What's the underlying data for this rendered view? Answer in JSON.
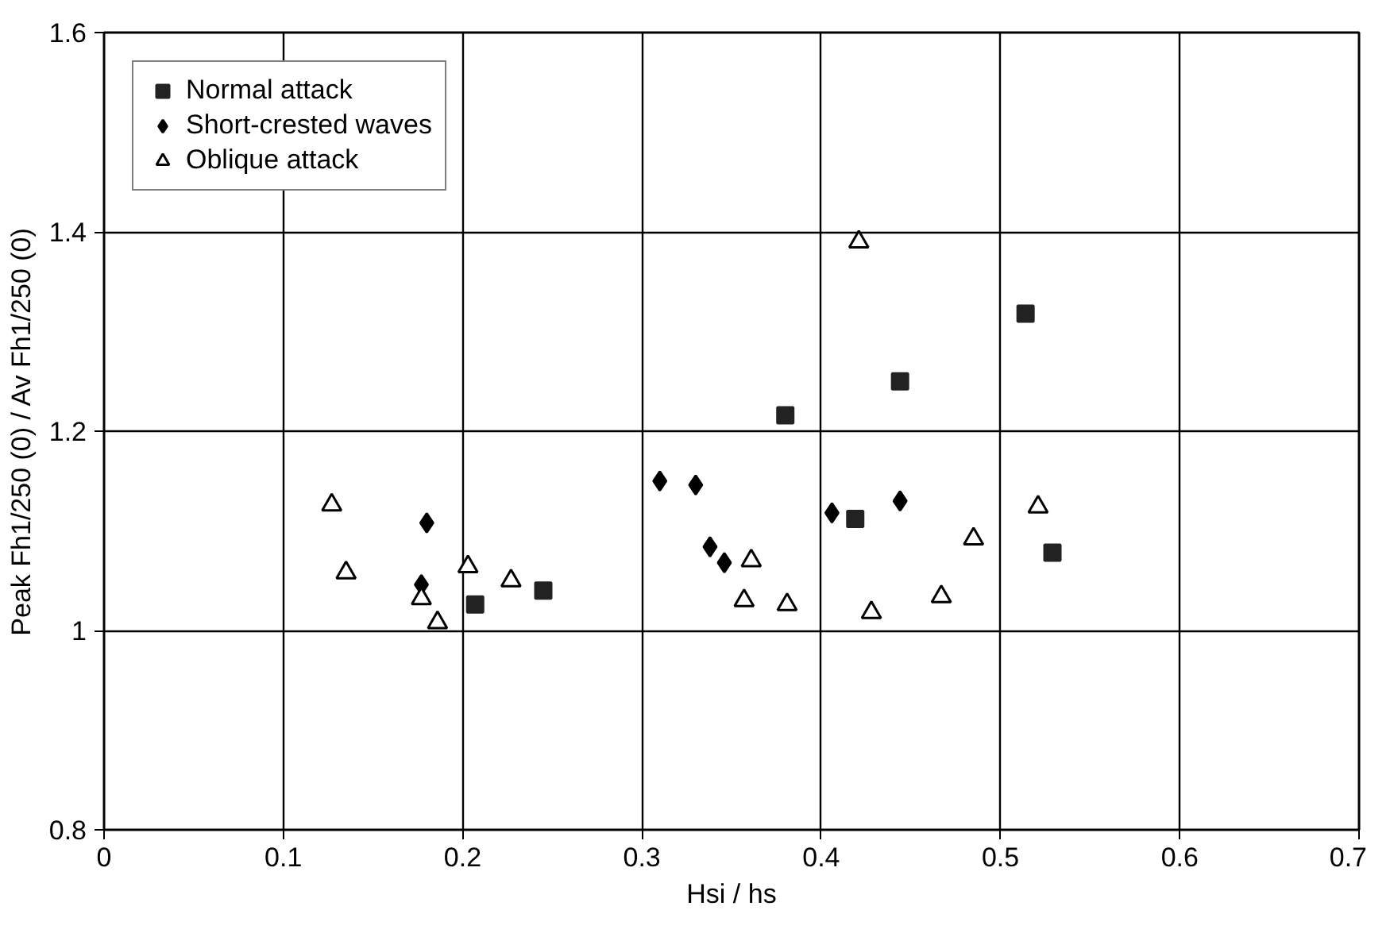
{
  "chart_data": {
    "type": "scatter",
    "xlabel": "Hsi / hs",
    "ylabel": "Peak Fh1/250 (0) / Av Fh1/250 (0)",
    "xlim": [
      0,
      0.7
    ],
    "xticks": [
      0,
      0.1,
      0.2,
      0.3,
      0.4,
      0.5,
      0.6,
      0.7
    ],
    "ylim": [
      0.8,
      1.6
    ],
    "yticks": [
      0.8,
      1,
      1.2,
      1.4,
      1.6
    ],
    "grid": true,
    "legend": "top left",
    "series": [
      {
        "name": "Normal attack",
        "color": "#222222",
        "marker": "square",
        "x": [
          0.207,
          0.245,
          0.38,
          0.444,
          0.514,
          0.419,
          0.529
        ],
        "values": [
          1.026,
          1.04,
          1.216,
          1.25,
          1.318,
          1.112,
          1.078
        ]
      },
      {
        "name": "Short-crested waves",
        "color": "#000000",
        "marker": "diamond",
        "x": [
          0.18,
          0.177,
          0.31,
          0.33,
          0.338,
          0.346,
          0.406,
          0.444
        ],
        "values": [
          1.108,
          1.046,
          1.15,
          1.146,
          1.084,
          1.068,
          1.118,
          1.13
        ]
      },
      {
        "name": "Oblique attack",
        "color": "#000000",
        "marker": "triangle",
        "x": [
          0.127,
          0.135,
          0.177,
          0.186,
          0.203,
          0.227,
          0.421,
          0.361,
          0.357,
          0.381,
          0.428,
          0.467,
          0.485,
          0.521
        ],
        "values": [
          1.126,
          1.058,
          1.032,
          1.008,
          1.064,
          1.05,
          1.39,
          1.07,
          1.03,
          1.026,
          1.018,
          1.034,
          1.092,
          1.124
        ]
      }
    ]
  }
}
